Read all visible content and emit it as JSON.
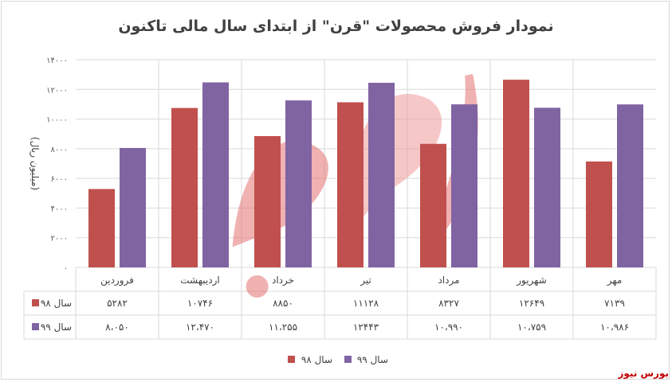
{
  "chart_data": {
    "type": "bar",
    "title": "نمودار فروش محصولات \"قرن\" از ابتدای سال مالی تاکنون",
    "ylabel": "(میلیون ریال)",
    "ylim": [
      0,
      14000
    ],
    "yticks": [
      "۰",
      "۲۰۰۰",
      "۴۰۰۰",
      "۶۰۰۰",
      "۸۰۰۰",
      "۱۰۰۰۰",
      "۱۲۰۰۰",
      "۱۴۰۰۰"
    ],
    "categories": [
      "فروردین",
      "اردیبهشت",
      "خرداد",
      "تیر",
      "مرداد",
      "شهریور",
      "مهر"
    ],
    "series": [
      {
        "name": "سال ۹۸",
        "color": "#c0504d",
        "values": [
          5282,
          10746,
          8850,
          11128,
          8327,
          12649,
          7139
        ],
        "labels": [
          "۵۲۸۲",
          "۱۰۷۴۶",
          "۸۸۵۰",
          "۱۱۱۲۸",
          "۸۳۲۷",
          "۱۲۶۴۹",
          "۷۱۳۹"
        ]
      },
      {
        "name": "سال ۹۹",
        "color": "#8064a2",
        "values": [
          8050,
          12470,
          11255,
          12443,
          10990,
          10759,
          10986
        ],
        "labels": [
          "۸،۰۵۰",
          "۱۲،۴۷۰",
          "۱۱،۲۵۵",
          "۱۲۴۴۳",
          "۱۰،۹۹۰",
          "۱۰،۷۵۹",
          "۱۰،۹۸۶"
        ]
      }
    ],
    "legend": "bottom",
    "data_table": true
  },
  "brand": "بورس نیوز"
}
